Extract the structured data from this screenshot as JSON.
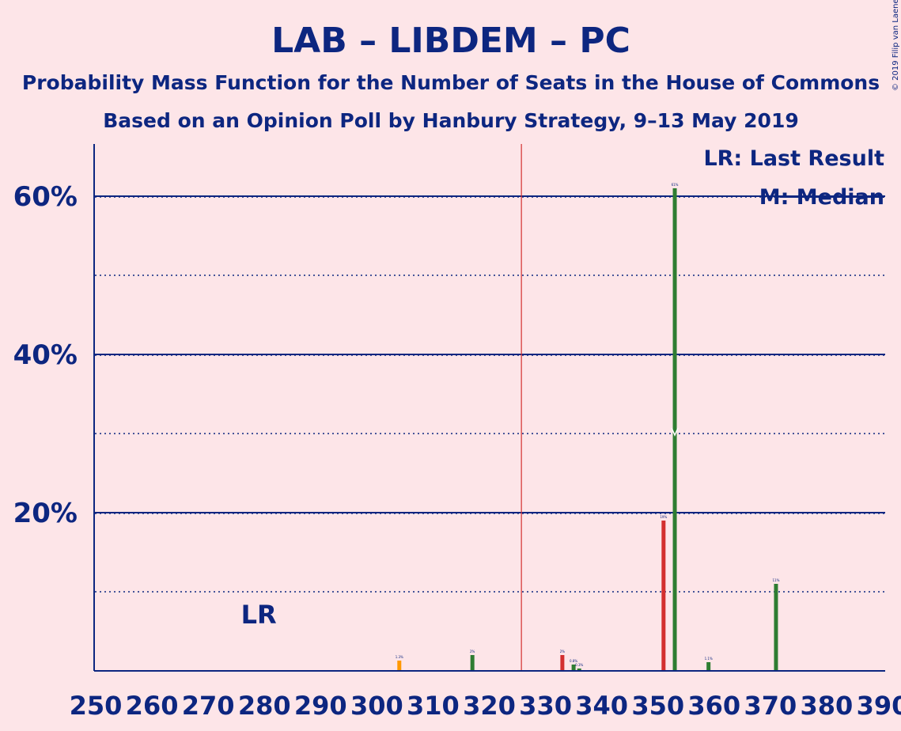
{
  "chart_data": {
    "type": "bar",
    "title": "LAB – LIBDEM – PC",
    "subtitle_1": "Probability Mass Function for the Number of Seats in the House of Commons",
    "subtitle_2": "Based on an Opinion Poll by Hanbury Strategy, 9–13 May 2019",
    "copyright": "© 2019 Filip van Laenen",
    "legend": {
      "last_result": "LR: Last Result",
      "median": "M: Median",
      "placement": "top-right"
    },
    "last_result_label": "LR",
    "last_result_seat": 279,
    "median_seat": 353,
    "majority_seat": 326,
    "xlim": [
      250,
      390
    ],
    "x_ticks": [
      "250",
      "260",
      "270",
      "280",
      "290",
      "300",
      "310",
      "320",
      "330",
      "340",
      "350",
      "360",
      "370",
      "380",
      "390"
    ],
    "ylim": [
      0,
      66
    ],
    "y_ticks": [
      "20%",
      "40%",
      "60%"
    ],
    "y_tick_values": [
      20,
      40,
      60
    ],
    "gridlines_solid": [
      20,
      40,
      60
    ],
    "gridlines_dotted": [
      10,
      30,
      50
    ],
    "colors": {
      "default": "#2E7D32",
      "below_lr": "#FF9800",
      "above_majority_red": "#D32F2F",
      "axis": "#0D2680",
      "majority_line": "#D32F2F",
      "background": "#FDE5E8"
    },
    "bars": [
      {
        "seat": 304,
        "value": 1.3,
        "label": "1.3%",
        "color": "#FF9800"
      },
      {
        "seat": 317,
        "value": 2,
        "label": "2%",
        "color": "#2E7D32"
      },
      {
        "seat": 333,
        "value": 2,
        "label": "2%",
        "color": "#D32F2F"
      },
      {
        "seat": 335,
        "value": 0.8,
        "label": "0.8%",
        "color": "#2E7D32"
      },
      {
        "seat": 336,
        "value": 0.3,
        "label": "0.3%",
        "color": "#2E7D32"
      },
      {
        "seat": 351,
        "value": 19,
        "label": "19%",
        "color": "#D32F2F"
      },
      {
        "seat": 353,
        "value": 61,
        "label": "61%",
        "color": "#2E7D32"
      },
      {
        "seat": 359,
        "value": 1.1,
        "label": "1.1%",
        "color": "#2E7D32"
      },
      {
        "seat": 371,
        "value": 11,
        "label": "11%",
        "color": "#2E7D32"
      }
    ]
  }
}
